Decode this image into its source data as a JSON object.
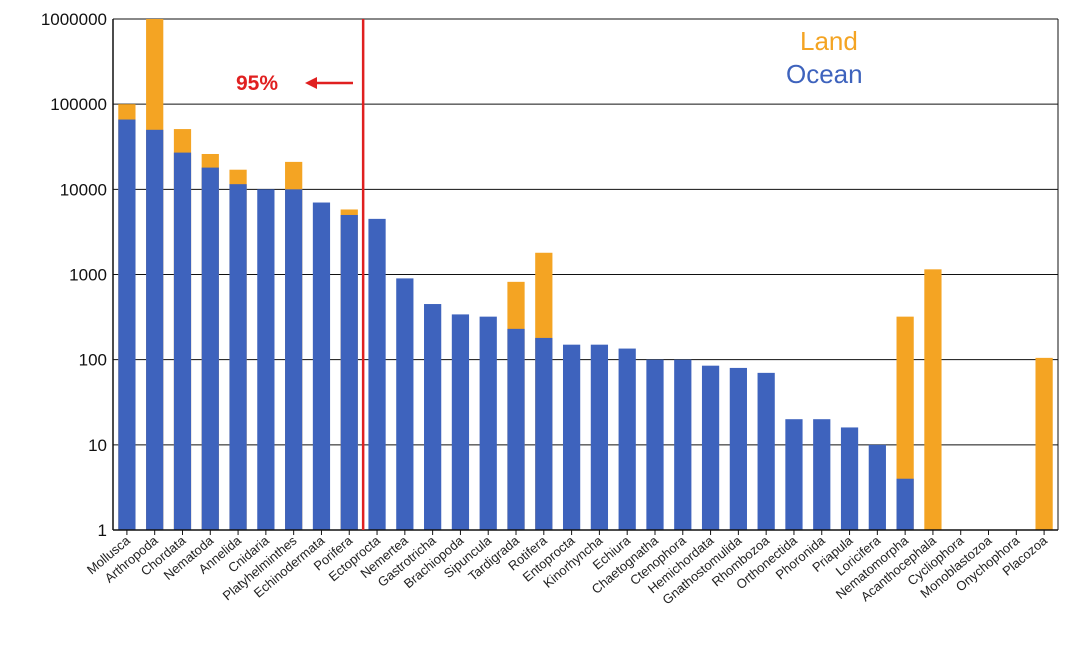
{
  "chart_data": {
    "type": "bar",
    "stacked": true,
    "yscale": "log",
    "ylim": [
      1,
      1000000
    ],
    "yticks": [
      "1",
      "10",
      "100",
      "1000",
      "10000",
      "100000",
      "1000000"
    ],
    "grid": "horizontal",
    "categories": [
      "Mollusca",
      "Arthropoda",
      "Chordata",
      "Nematoda",
      "Annelida",
      "Cnidaria",
      "Platyhelminthes",
      "Echinodermata",
      "Porifera",
      "Ectoprocta",
      "Nemertea",
      "Gastrotricha",
      "Brachiopoda",
      "Sipuncula",
      "Tardigrada",
      "Rotifera",
      "Entoprocta",
      "Kinorhyncha",
      "Echiura",
      "Chaetognatha",
      "Ctenophora",
      "Hemichordata",
      "Gnathostomulida",
      "Rhombozoa",
      "Orthonectida",
      "Phoronida",
      "Priapula",
      "Loricifera",
      "Nematomorpha",
      "Acanthocephala",
      "Cycliophora",
      "Monoblastozoa",
      "Onychophora",
      "Placozoa"
    ],
    "series": [
      {
        "name": "Ocean",
        "color": "#3e63bd",
        "values": [
          66000,
          50000,
          27000,
          18000,
          11500,
          10000,
          10000,
          7000,
          5000,
          4500,
          900,
          450,
          340,
          320,
          230,
          180,
          150,
          150,
          135,
          100,
          100,
          85,
          80,
          70,
          20,
          20,
          16,
          10,
          4,
          0,
          0,
          0,
          0,
          0
        ]
      },
      {
        "name": "Land",
        "color": "#f4a423",
        "values": [
          100000,
          1000000,
          51000,
          26000,
          17000,
          10000,
          21000,
          7000,
          5800,
          4500,
          900,
          450,
          340,
          320,
          820,
          1800,
          150,
          150,
          135,
          100,
          100,
          85,
          80,
          70,
          20,
          20,
          16,
          10,
          320,
          1150,
          0,
          0,
          0,
          105
        ]
      }
    ],
    "series_note": "",
    "legend_position": "top-right",
    "legend": [
      "Land",
      "Ocean"
    ],
    "annotation": {
      "text": "95%",
      "after_category": "Porifera",
      "color": "#e02020"
    }
  }
}
